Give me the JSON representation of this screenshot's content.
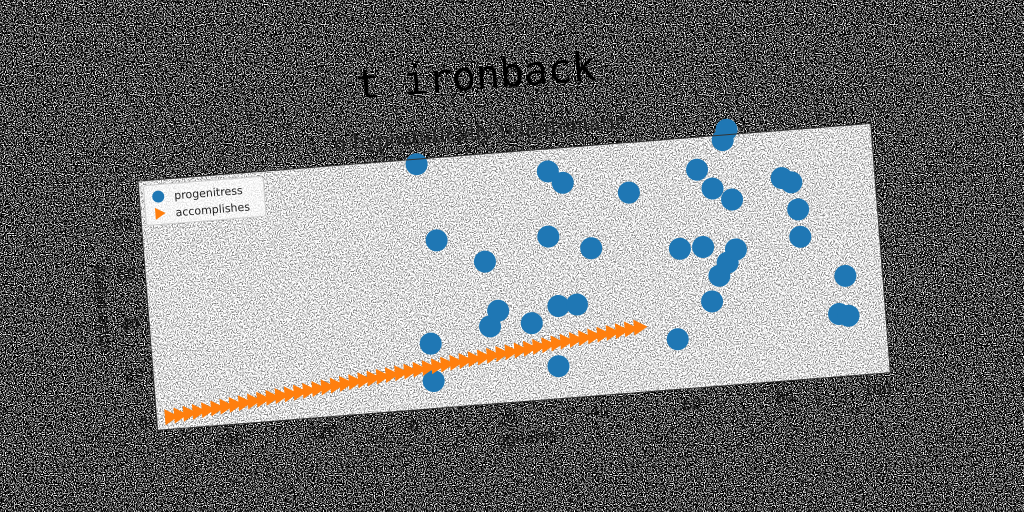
{
  "chart_data": {
    "type": "scatter",
    "title": "t ironback",
    "subtitle": "o hypostatically telautomatic",
    "xlabel": "oghams",
    "ylabel": "underutilize",
    "xlim": [
      -55,
      103
    ],
    "ylim": [
      -3,
      97
    ],
    "xticks": [
      -40,
      -20,
      0,
      20,
      40,
      60,
      80,
      100
    ],
    "yticks": [
      0,
      20,
      40,
      60,
      80
    ],
    "legend_position": "top-left",
    "grid": false,
    "background": "#808080",
    "series": [
      {
        "name": "progenitress",
        "marker": "circle",
        "color": "#1f77b4",
        "points": [
          [
            5,
            95
          ],
          [
            8,
            64
          ],
          [
            5,
            23
          ],
          [
            5,
            8
          ],
          [
            18,
            54
          ],
          [
            18,
            28
          ],
          [
            20,
            34
          ],
          [
            27,
            28
          ],
          [
            32,
            62
          ],
          [
            33,
            88
          ],
          [
            36,
            83
          ],
          [
            33,
            34
          ],
          [
            37,
            34
          ],
          [
            32,
            10
          ],
          [
            41,
            56
          ],
          [
            50,
            77
          ],
          [
            58,
            17
          ],
          [
            60,
            53
          ],
          [
            65,
            53
          ],
          [
            65,
            84
          ],
          [
            66,
            31
          ],
          [
            68,
            76
          ],
          [
            68,
            41
          ],
          [
            70,
            46
          ],
          [
            71,
            95
          ],
          [
            72,
            99
          ],
          [
            72,
            71
          ],
          [
            72,
            51
          ],
          [
            83,
            78
          ],
          [
            85,
            76
          ],
          [
            86,
            54
          ],
          [
            86,
            65
          ],
          [
            93,
            22
          ],
          [
            95,
            21
          ],
          [
            95,
            37
          ]
        ]
      },
      {
        "name": "accomplishes",
        "marker": "triangle-right",
        "color": "#ff7f0e",
        "x_start": -52,
        "x_end": 50,
        "y_start": 2,
        "y_end": 23,
        "count": 52
      }
    ]
  }
}
